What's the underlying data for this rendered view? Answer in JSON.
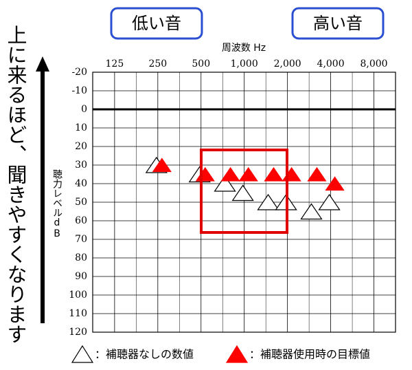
{
  "chart_data": {
    "type": "scatter",
    "low_label": "低い音",
    "high_label": "高い音",
    "side_note": "上に来るほど、聞きやすくなります",
    "x_label": "周波数 Hz",
    "y_label": "聴力レベルdB",
    "x_log": true,
    "y_reversed": true,
    "grid": true,
    "xlim": [
      88,
      11314
    ],
    "xticks": [
      125,
      250,
      500,
      {
        "value": 1000,
        "label": "1,000"
      },
      {
        "value": 2000,
        "label": "2,000"
      },
      {
        "value": 4000,
        "label": "4,000"
      },
      {
        "value": 8000,
        "label": "8,000"
      }
    ],
    "ylim": [
      -20,
      120
    ],
    "yticks": [
      -20,
      -10,
      0,
      10,
      20,
      30,
      40,
      50,
      60,
      70,
      80,
      90,
      100,
      110,
      120
    ],
    "series": [
      {
        "name": "：補聴器なしの数値",
        "color": "#ffffff",
        "x": [
          250,
          500,
          750,
          1000,
          1500,
          2000,
          3000,
          4000
        ],
        "values": [
          30,
          35,
          40,
          45,
          50,
          50,
          55,
          50
        ]
      },
      {
        "name": "：補聴器使用時の目標値",
        "color": "#ff0000",
        "x": [
          250,
          500,
          750,
          1000,
          1500,
          2000,
          3000,
          4000
        ],
        "values": [
          30,
          35,
          35,
          35,
          35,
          35,
          35,
          40
        ]
      }
    ]
  }
}
